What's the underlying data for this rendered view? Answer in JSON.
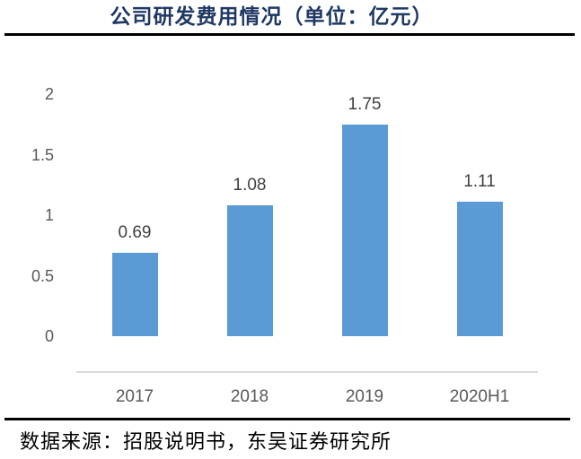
{
  "chart_data": {
    "type": "bar",
    "title": "公司研发费用情况（单位：亿元）",
    "unit": "亿元",
    "categories": [
      "2017",
      "2018",
      "2019",
      "2020H1"
    ],
    "values": [
      0.69,
      1.08,
      1.75,
      1.11
    ],
    "data_labels": [
      "0.69",
      "1.08",
      "1.75",
      "1.11"
    ],
    "yticks": [
      0,
      0.5,
      1,
      1.5,
      2
    ],
    "ytick_labels": [
      "0",
      "0.5",
      "1",
      "1.5",
      "2"
    ],
    "ylim": [
      0,
      2
    ],
    "grid": false,
    "legend": false,
    "xlabel": "",
    "ylabel": "",
    "source_note": "数据来源：招股说明书，东吴证券研究所"
  },
  "colors": {
    "title": "#1F3864",
    "bar": "#5B9BD5",
    "axis_line": "#D9D9D9",
    "tick_label": "#595959",
    "value_label": "#404040",
    "rule": "#000000",
    "background": "#FFFFFF"
  }
}
